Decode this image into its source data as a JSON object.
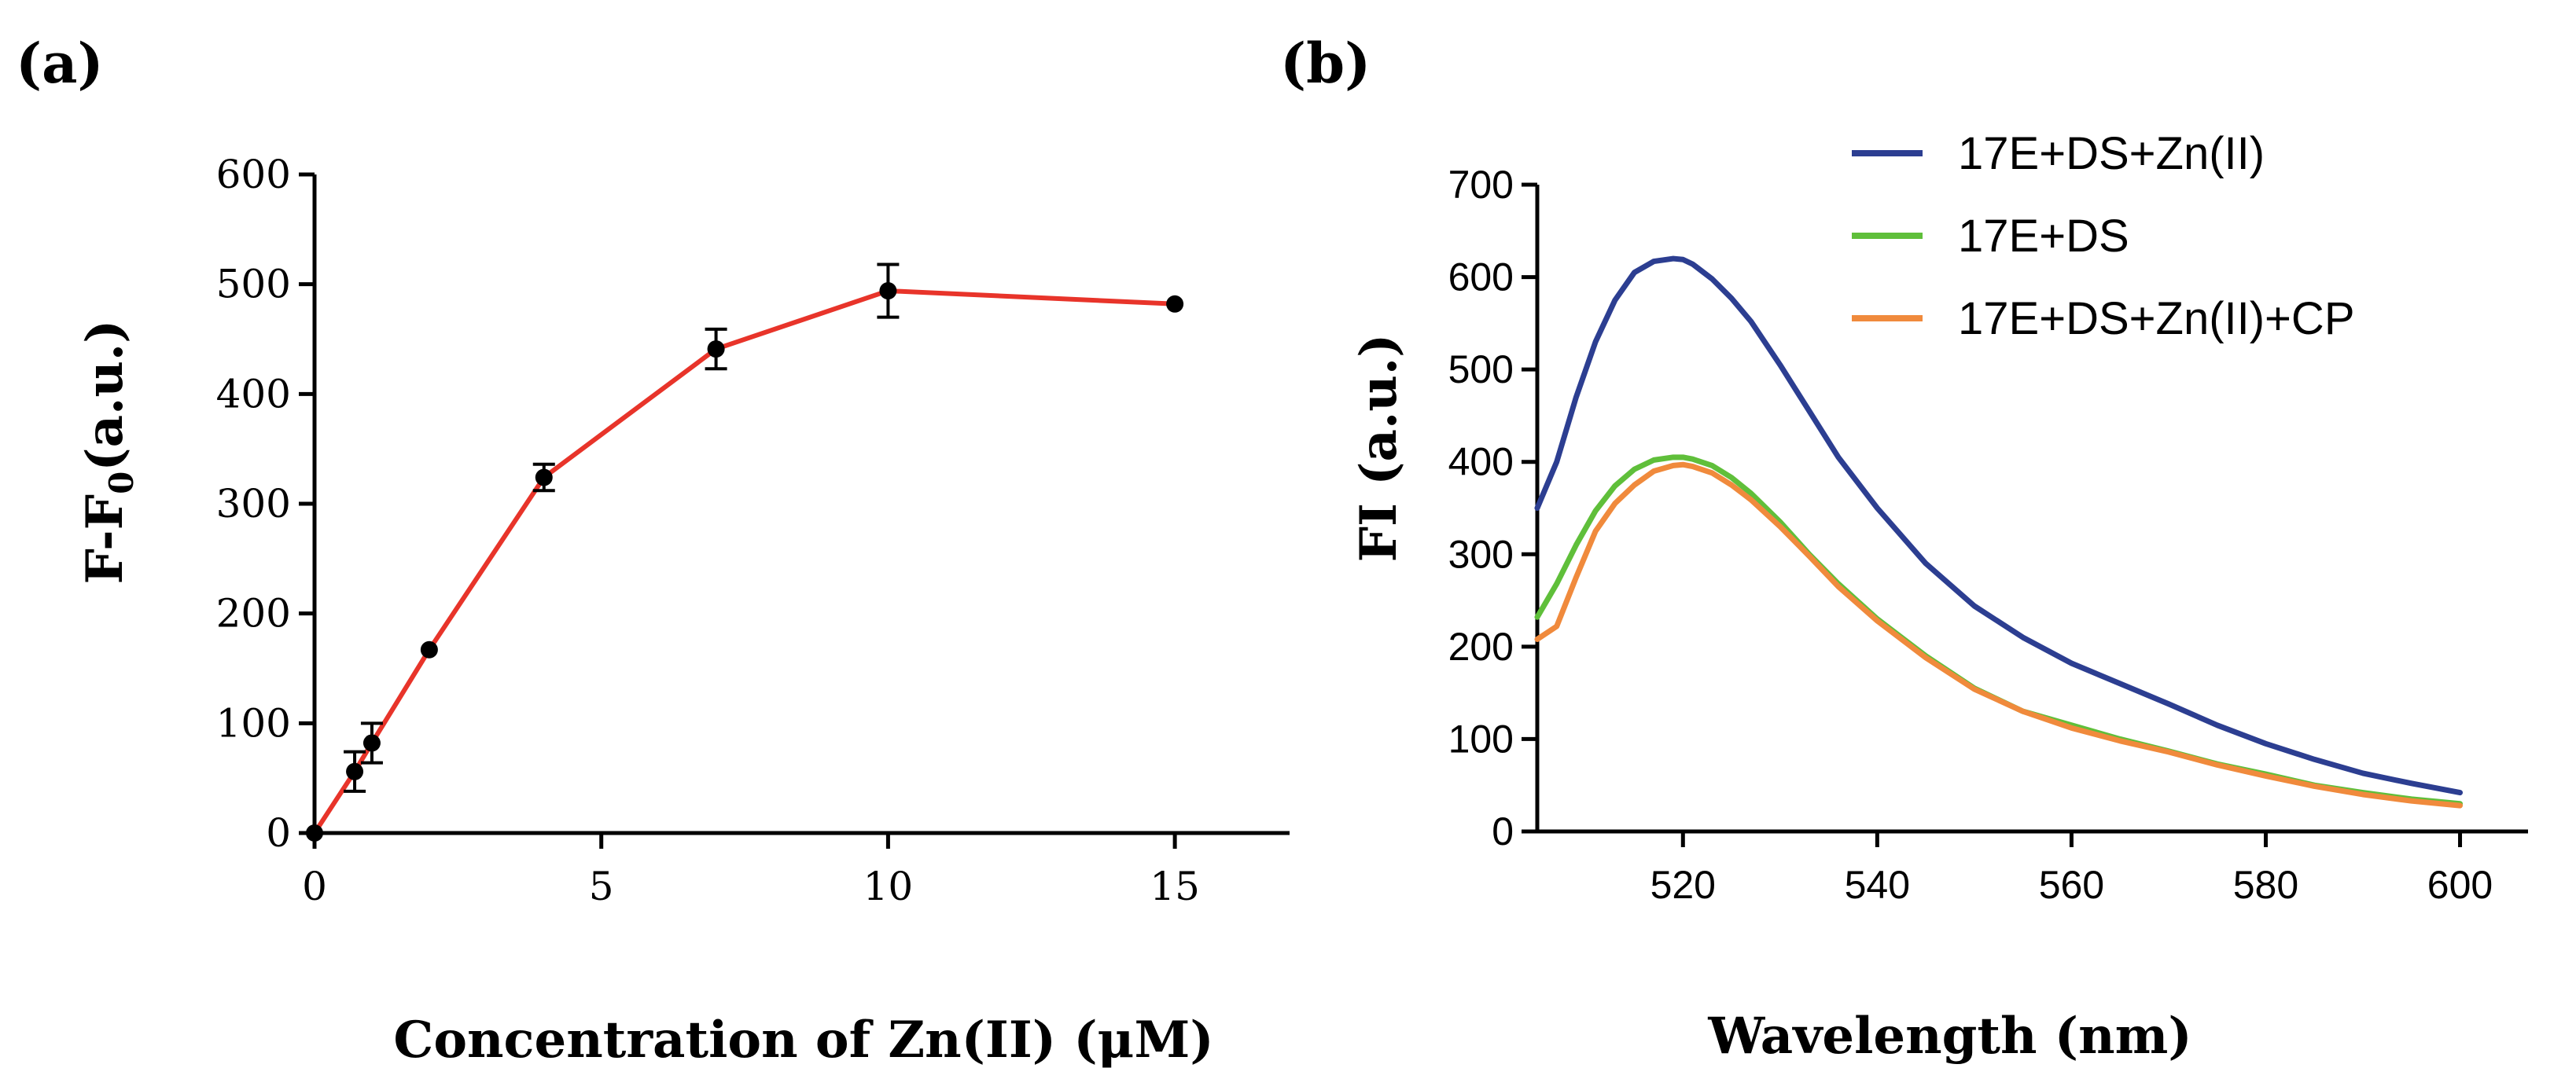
{
  "chart_data": [
    {
      "panel_label": "(a)",
      "type": "line",
      "title": "",
      "xlabel": "Concentration of Zn(II) (μM)",
      "ylabel": {
        "main": "F-F",
        "sub": "0",
        "suffix": "(a.u.)"
      },
      "xlim": [
        0,
        17
      ],
      "ylim": [
        0,
        600
      ],
      "xticks": [
        0,
        5,
        10,
        15
      ],
      "yticks": [
        0,
        100,
        200,
        300,
        400,
        500,
        600
      ],
      "grid": false,
      "line_color": "#e8342a",
      "marker_color": "#000000",
      "series": [
        {
          "name": "F-F0",
          "x": [
            0,
            0.7,
            1,
            2,
            4,
            7,
            10,
            15
          ],
          "y": [
            0,
            56,
            82,
            167,
            324,
            441,
            494,
            482
          ],
          "err": [
            0,
            18,
            18,
            0,
            12,
            18,
            24,
            0
          ]
        }
      ]
    },
    {
      "panel_label": "(b)",
      "type": "line",
      "title": "",
      "xlabel": "Wavelength (nm)",
      "ylabel": "FI (a.u.)",
      "xlim": [
        505,
        607
      ],
      "ylim": [
        0,
        700
      ],
      "xticks": [
        520,
        540,
        560,
        580,
        600
      ],
      "yticks": [
        0,
        100,
        200,
        300,
        400,
        500,
        600,
        700
      ],
      "grid": false,
      "legend_position": "top-right",
      "x": [
        505,
        507,
        509,
        511,
        513,
        515,
        517,
        519,
        520,
        521,
        523,
        525,
        527,
        530,
        533,
        536,
        540,
        545,
        550,
        555,
        560,
        565,
        570,
        575,
        580,
        585,
        590,
        595,
        600
      ],
      "series": [
        {
          "name": "17E+DS+Zn(II)",
          "color": "#2c3e91",
          "values": [
            350,
            400,
            470,
            530,
            575,
            605,
            617,
            620,
            619,
            614,
            598,
            577,
            552,
            505,
            455,
            405,
            350,
            290,
            244,
            210,
            182,
            160,
            138,
            115,
            95,
            78,
            63,
            52,
            42
          ]
        },
        {
          "name": "17E+DS",
          "color": "#5fbf3a",
          "values": [
            232,
            268,
            310,
            347,
            374,
            392,
            402,
            405,
            405,
            403,
            396,
            383,
            366,
            335,
            300,
            268,
            230,
            190,
            155,
            130,
            115,
            100,
            87,
            73,
            62,
            50,
            42,
            35,
            30
          ]
        },
        {
          "name": "17E+DS+Zn(II)+CP",
          "color": "#f08a3c",
          "values": [
            208,
            222,
            275,
            325,
            355,
            375,
            390,
            396,
            397,
            395,
            388,
            375,
            359,
            330,
            298,
            265,
            228,
            188,
            154,
            130,
            112,
            98,
            86,
            72,
            60,
            49,
            40,
            33,
            28
          ]
        }
      ]
    }
  ]
}
